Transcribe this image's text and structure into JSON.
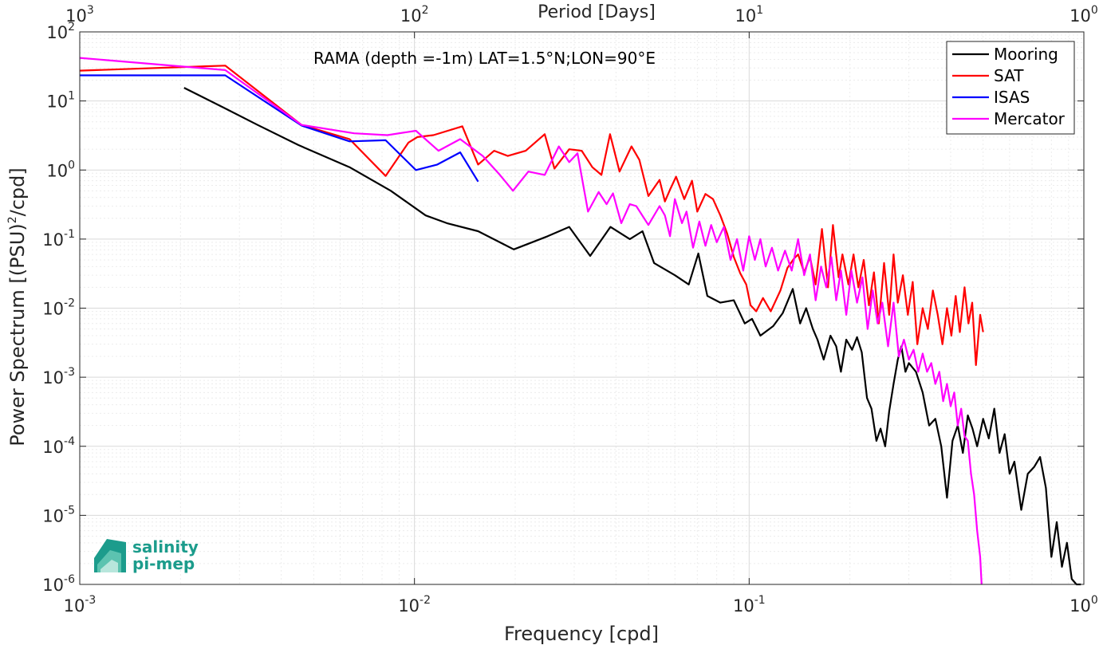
{
  "chart_data": {
    "type": "line",
    "title": "",
    "annotation": "RAMA (depth =-1m) LAT=1.5°N;LON=90°E",
    "xlabel": "Frequency [cpd]",
    "ylabel": "Power Spectrum [(PSU)",
    "ylabel_sup": "2",
    "ylabel_tail": "/cpd]",
    "top_xlabel": "Period [Days]",
    "xscale": "log",
    "yscale": "log",
    "xlim": [
      0.001,
      1
    ],
    "ylim": [
      1e-06,
      100
    ],
    "grid": true,
    "legend_position": "top-right",
    "x_ticks": [
      {
        "base": "10",
        "exp": "-3",
        "value": 0.001
      },
      {
        "base": "10",
        "exp": "-2",
        "value": 0.01
      },
      {
        "base": "10",
        "exp": "-1",
        "value": 0.1
      },
      {
        "base": "10",
        "exp": "0",
        "value": 1
      }
    ],
    "top_ticks": [
      {
        "base": "10",
        "exp": "3",
        "value": 0.001
      },
      {
        "base": "10",
        "exp": "2",
        "value": 0.01
      },
      {
        "base": "10",
        "exp": "1",
        "value": 0.1
      },
      {
        "base": "10",
        "exp": "0",
        "value": 1
      }
    ],
    "y_ticks": [
      {
        "base": "10",
        "exp": "2",
        "value": 100
      },
      {
        "base": "10",
        "exp": "1",
        "value": 10
      },
      {
        "base": "10",
        "exp": "0",
        "value": 1
      },
      {
        "base": "10",
        "exp": "-1",
        "value": 0.1
      },
      {
        "base": "10",
        "exp": "-2",
        "value": 0.01
      },
      {
        "base": "10",
        "exp": "-3",
        "value": 0.001
      },
      {
        "base": "10",
        "exp": "-4",
        "value": 0.0001
      },
      {
        "base": "10",
        "exp": "-5",
        "value": 1e-05
      },
      {
        "base": "10",
        "exp": "-6",
        "value": 1e-06
      }
    ],
    "series": [
      {
        "name": "Mooring",
        "color": "#000000",
        "points": [
          [
            0.00205,
            15.5
          ],
          [
            0.00272,
            7.8
          ],
          [
            0.0034,
            4.5
          ],
          [
            0.0045,
            2.3
          ],
          [
            0.0064,
            1.1
          ],
          [
            0.0085,
            0.5
          ],
          [
            0.0108,
            0.22
          ],
          [
            0.0125,
            0.17
          ],
          [
            0.0155,
            0.13
          ],
          [
            0.0198,
            0.071
          ],
          [
            0.025,
            0.11
          ],
          [
            0.029,
            0.15
          ],
          [
            0.0335,
            0.057
          ],
          [
            0.0385,
            0.15
          ],
          [
            0.044,
            0.1
          ],
          [
            0.048,
            0.13
          ],
          [
            0.052,
            0.045
          ],
          [
            0.06,
            0.03
          ],
          [
            0.066,
            0.022
          ],
          [
            0.0705,
            0.062
          ],
          [
            0.075,
            0.015
          ],
          [
            0.082,
            0.012
          ],
          [
            0.09,
            0.013
          ],
          [
            0.097,
            0.006
          ],
          [
            0.102,
            0.007
          ],
          [
            0.108,
            0.004
          ],
          [
            0.118,
            0.0055
          ],
          [
            0.126,
            0.0085
          ],
          [
            0.135,
            0.019
          ],
          [
            0.142,
            0.006
          ],
          [
            0.148,
            0.01
          ],
          [
            0.155,
            0.005
          ],
          [
            0.16,
            0.0035
          ],
          [
            0.167,
            0.0018
          ],
          [
            0.175,
            0.004
          ],
          [
            0.182,
            0.0028
          ],
          [
            0.188,
            0.0012
          ],
          [
            0.195,
            0.0035
          ],
          [
            0.203,
            0.0025
          ],
          [
            0.21,
            0.0038
          ],
          [
            0.217,
            0.0023
          ],
          [
            0.225,
            0.0005
          ],
          [
            0.232,
            0.00035
          ],
          [
            0.24,
            0.00012
          ],
          [
            0.247,
            0.00018
          ],
          [
            0.255,
            0.0001
          ],
          [
            0.262,
            0.00032
          ],
          [
            0.27,
            0.0008
          ],
          [
            0.278,
            0.0018
          ],
          [
            0.285,
            0.0028
          ],
          [
            0.293,
            0.0012
          ],
          [
            0.3,
            0.0016
          ],
          [
            0.315,
            0.0012
          ],
          [
            0.33,
            0.0006
          ],
          [
            0.345,
            0.0002
          ],
          [
            0.36,
            0.00025
          ],
          [
            0.375,
            0.0001
          ],
          [
            0.39,
            1.8e-05
          ],
          [
            0.405,
            0.00012
          ],
          [
            0.42,
            0.0002
          ],
          [
            0.435,
            8e-05
          ],
          [
            0.45,
            0.00028
          ],
          [
            0.465,
            0.00018
          ],
          [
            0.48,
            0.0001
          ],
          [
            0.5,
            0.00025
          ],
          [
            0.52,
            0.00013
          ],
          [
            0.54,
            0.00035
          ],
          [
            0.56,
            8e-05
          ],
          [
            0.58,
            0.00015
          ],
          [
            0.6,
            4e-05
          ],
          [
            0.62,
            6e-05
          ],
          [
            0.65,
            1.2e-05
          ],
          [
            0.68,
            4e-05
          ],
          [
            0.71,
            5e-05
          ],
          [
            0.74,
            7e-05
          ],
          [
            0.77,
            2.5e-05
          ],
          [
            0.8,
            2.5e-06
          ],
          [
            0.83,
            8e-06
          ],
          [
            0.86,
            1.8e-06
          ],
          [
            0.89,
            4e-06
          ],
          [
            0.92,
            1.2e-06
          ],
          [
            0.95,
            1e-06
          ],
          [
            0.98,
            1e-06
          ]
        ]
      },
      {
        "name": "SAT",
        "color": "#ff0000",
        "points": [
          [
            0.001,
            27.5
          ],
          [
            0.00272,
            32.5
          ],
          [
            0.0046,
            4.5
          ],
          [
            0.0064,
            2.8
          ],
          [
            0.0082,
            0.82
          ],
          [
            0.0096,
            2.5
          ],
          [
            0.0102,
            3
          ],
          [
            0.0114,
            3.2
          ],
          [
            0.0139,
            4.3
          ],
          [
            0.0155,
            1.2
          ],
          [
            0.0173,
            1.9
          ],
          [
            0.019,
            1.6
          ],
          [
            0.0215,
            1.9
          ],
          [
            0.0245,
            3.3
          ],
          [
            0.0262,
            1.05
          ],
          [
            0.029,
            2
          ],
          [
            0.0316,
            1.9
          ],
          [
            0.034,
            1.1
          ],
          [
            0.0362,
            0.85
          ],
          [
            0.0384,
            3.3
          ],
          [
            0.041,
            0.95
          ],
          [
            0.0445,
            2.2
          ],
          [
            0.047,
            1.4
          ],
          [
            0.05,
            0.42
          ],
          [
            0.054,
            0.72
          ],
          [
            0.056,
            0.35
          ],
          [
            0.058,
            0.52
          ],
          [
            0.0605,
            0.8
          ],
          [
            0.064,
            0.38
          ],
          [
            0.0675,
            0.7
          ],
          [
            0.07,
            0.25
          ],
          [
            0.074,
            0.45
          ],
          [
            0.078,
            0.38
          ],
          [
            0.082,
            0.22
          ],
          [
            0.086,
            0.12
          ],
          [
            0.09,
            0.055
          ],
          [
            0.094,
            0.032
          ],
          [
            0.098,
            0.022
          ],
          [
            0.101,
            0.011
          ],
          [
            0.105,
            0.009
          ],
          [
            0.11,
            0.014
          ],
          [
            0.116,
            0.009
          ],
          [
            0.124,
            0.018
          ],
          [
            0.13,
            0.038
          ],
          [
            0.136,
            0.052
          ],
          [
            0.14,
            0.06
          ],
          [
            0.146,
            0.033
          ],
          [
            0.152,
            0.055
          ],
          [
            0.158,
            0.022
          ],
          [
            0.165,
            0.14
          ],
          [
            0.172,
            0.02
          ],
          [
            0.178,
            0.16
          ],
          [
            0.185,
            0.028
          ],
          [
            0.19,
            0.06
          ],
          [
            0.198,
            0.022
          ],
          [
            0.205,
            0.06
          ],
          [
            0.212,
            0.02
          ],
          [
            0.22,
            0.05
          ],
          [
            0.228,
            0.011
          ],
          [
            0.236,
            0.033
          ],
          [
            0.244,
            0.006
          ],
          [
            0.253,
            0.045
          ],
          [
            0.262,
            0.008
          ],
          [
            0.27,
            0.06
          ],
          [
            0.278,
            0.012
          ],
          [
            0.288,
            0.03
          ],
          [
            0.298,
            0.008
          ],
          [
            0.308,
            0.024
          ],
          [
            0.318,
            0.003
          ],
          [
            0.33,
            0.01
          ],
          [
            0.342,
            0.005
          ],
          [
            0.354,
            0.018
          ],
          [
            0.366,
            0.008
          ],
          [
            0.378,
            0.003
          ],
          [
            0.39,
            0.01
          ],
          [
            0.402,
            0.004
          ],
          [
            0.414,
            0.015
          ],
          [
            0.426,
            0.0045
          ],
          [
            0.44,
            0.02
          ],
          [
            0.452,
            0.006
          ],
          [
            0.464,
            0.012
          ],
          [
            0.476,
            0.0015
          ],
          [
            0.49,
            0.008
          ],
          [
            0.5,
            0.0045
          ]
        ]
      },
      {
        "name": "ISAS",
        "color": "#0000ff",
        "points": [
          [
            0.001,
            23.5
          ],
          [
            0.00272,
            23.5
          ],
          [
            0.0046,
            4.4
          ],
          [
            0.0064,
            2.6
          ],
          [
            0.0082,
            2.7
          ],
          [
            0.0101,
            1
          ],
          [
            0.0117,
            1.2
          ],
          [
            0.0137,
            1.8
          ],
          [
            0.0155,
            0.68
          ]
        ]
      },
      {
        "name": "Mercator",
        "color": "#ff00ff",
        "points": [
          [
            0.001,
            42
          ],
          [
            0.00272,
            28
          ],
          [
            0.0046,
            4.5
          ],
          [
            0.0066,
            3.4
          ],
          [
            0.0083,
            3.2
          ],
          [
            0.0101,
            3.7
          ],
          [
            0.0118,
            1.9
          ],
          [
            0.0137,
            2.8
          ],
          [
            0.016,
            1.6
          ],
          [
            0.018,
            0.85
          ],
          [
            0.0197,
            0.5
          ],
          [
            0.0219,
            0.95
          ],
          [
            0.0245,
            0.85
          ],
          [
            0.027,
            2.2
          ],
          [
            0.029,
            1.3
          ],
          [
            0.0307,
            1.75
          ],
          [
            0.033,
            0.25
          ],
          [
            0.0355,
            0.48
          ],
          [
            0.0375,
            0.32
          ],
          [
            0.0392,
            0.46
          ],
          [
            0.0415,
            0.17
          ],
          [
            0.044,
            0.32
          ],
          [
            0.046,
            0.3
          ],
          [
            0.05,
            0.16
          ],
          [
            0.054,
            0.3
          ],
          [
            0.056,
            0.22
          ],
          [
            0.058,
            0.11
          ],
          [
            0.06,
            0.38
          ],
          [
            0.063,
            0.17
          ],
          [
            0.065,
            0.25
          ],
          [
            0.068,
            0.075
          ],
          [
            0.071,
            0.18
          ],
          [
            0.074,
            0.08
          ],
          [
            0.077,
            0.16
          ],
          [
            0.08,
            0.09
          ],
          [
            0.084,
            0.15
          ],
          [
            0.088,
            0.05
          ],
          [
            0.092,
            0.1
          ],
          [
            0.096,
            0.035
          ],
          [
            0.1,
            0.11
          ],
          [
            0.104,
            0.05
          ],
          [
            0.108,
            0.1
          ],
          [
            0.112,
            0.04
          ],
          [
            0.117,
            0.075
          ],
          [
            0.122,
            0.035
          ],
          [
            0.128,
            0.068
          ],
          [
            0.134,
            0.035
          ],
          [
            0.14,
            0.1
          ],
          [
            0.146,
            0.03
          ],
          [
            0.152,
            0.06
          ],
          [
            0.158,
            0.013
          ],
          [
            0.164,
            0.04
          ],
          [
            0.17,
            0.02
          ],
          [
            0.176,
            0.055
          ],
          [
            0.182,
            0.013
          ],
          [
            0.188,
            0.035
          ],
          [
            0.195,
            0.008
          ],
          [
            0.202,
            0.035
          ],
          [
            0.21,
            0.012
          ],
          [
            0.218,
            0.028
          ],
          [
            0.226,
            0.005
          ],
          [
            0.234,
            0.018
          ],
          [
            0.242,
            0.006
          ],
          [
            0.25,
            0.012
          ],
          [
            0.26,
            0.0028
          ],
          [
            0.27,
            0.012
          ],
          [
            0.28,
            0.002
          ],
          [
            0.29,
            0.0035
          ],
          [
            0.3,
            0.0018
          ],
          [
            0.31,
            0.0025
          ],
          [
            0.32,
            0.0012
          ],
          [
            0.33,
            0.0022
          ],
          [
            0.34,
            0.0012
          ],
          [
            0.35,
            0.0016
          ],
          [
            0.36,
            0.0008
          ],
          [
            0.37,
            0.0012
          ],
          [
            0.38,
            0.00045
          ],
          [
            0.39,
            0.0008
          ],
          [
            0.4,
            0.00038
          ],
          [
            0.41,
            0.0006
          ],
          [
            0.42,
            0.0002
          ],
          [
            0.43,
            0.00035
          ],
          [
            0.44,
            0.00014
          ],
          [
            0.45,
            0.00012
          ],
          [
            0.46,
            4e-05
          ],
          [
            0.47,
            2e-05
          ],
          [
            0.48,
            6e-06
          ],
          [
            0.49,
            2.5e-06
          ],
          [
            0.495,
            1e-06
          ]
        ]
      }
    ]
  },
  "logo": {
    "line1": "salinity",
    "line2": "pi-mep"
  }
}
